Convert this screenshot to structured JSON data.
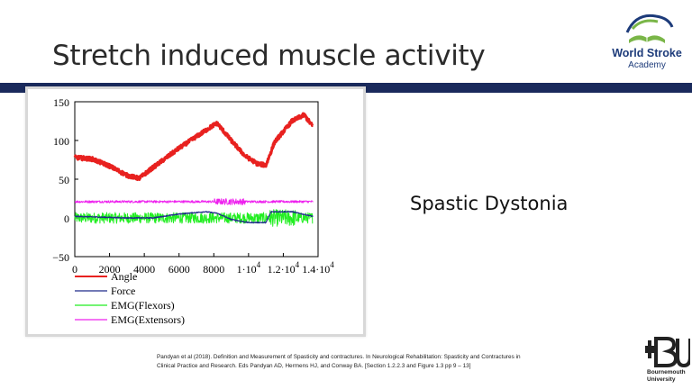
{
  "slide": {
    "title": "Stretch induced muscle activity",
    "annotation": "Spastic Dystonia",
    "citation": "Pandyan et al (2018). Definition and Measurement of Spasticity and contractures. In Neurological Rehabilitation: Spasticity and Contractures in Clinical Practice and Research. Eds Pandyan AD, Hermens HJ, and Conway BA. [Section 1.2.2.3 and Figure 1.3 pp 9 – 13]"
  },
  "logos": {
    "top_line1": "World Stroke",
    "top_line2": "Academy",
    "bottom_line1": "Bournemouth",
    "bottom_line2": "University",
    "brand_color": "#1d3b7a",
    "accent_green": "#7ab648"
  },
  "chart_data": {
    "type": "line",
    "xlim": [
      0,
      14000
    ],
    "ylim": [
      -50,
      150
    ],
    "x_ticks": [
      0,
      2000,
      4000,
      6000,
      8000,
      10000,
      12000,
      14000
    ],
    "x_tick_labels": [
      "0",
      "2000",
      "4000",
      "6000",
      "8000",
      "1·10",
      "1.2·10",
      "1.4·10"
    ],
    "x_tick_exponent": "4",
    "y_ticks": [
      150,
      100,
      50,
      0,
      -50
    ],
    "y_tick_labels": [
      "150",
      "100",
      "50",
      "0",
      "−50"
    ],
    "series": [
      {
        "name": "Angle",
        "color": "#e8211f",
        "noise": 2.5,
        "points": [
          [
            0,
            78
          ],
          [
            1000,
            76
          ],
          [
            2000,
            67
          ],
          [
            3000,
            55
          ],
          [
            3700,
            51
          ],
          [
            4500,
            65
          ],
          [
            6000,
            90
          ],
          [
            7000,
            105
          ],
          [
            8000,
            120
          ],
          [
            8200,
            122
          ],
          [
            9000,
            100
          ],
          [
            9800,
            80
          ],
          [
            10500,
            70
          ],
          [
            11000,
            68
          ],
          [
            11500,
            98
          ],
          [
            12500,
            125
          ],
          [
            13200,
            133
          ],
          [
            13700,
            118
          ]
        ]
      },
      {
        "name": "Force",
        "color": "#1e2a8a",
        "noise": 0.6,
        "points": [
          [
            0,
            2
          ],
          [
            3000,
            0
          ],
          [
            4500,
            0
          ],
          [
            6000,
            5
          ],
          [
            7500,
            8
          ],
          [
            8200,
            6
          ],
          [
            9000,
            -2
          ],
          [
            10000,
            -6
          ],
          [
            11000,
            -6
          ],
          [
            11300,
            8
          ],
          [
            12500,
            8
          ],
          [
            13700,
            2
          ]
        ]
      },
      {
        "name": "EMG(Flexors)",
        "color": "#22ee22",
        "noise": 7,
        "points": [
          [
            0,
            0
          ],
          [
            13700,
            0
          ]
        ]
      },
      {
        "name": "EMG(Extensors)",
        "color": "#ee22ee",
        "noise": 1.5,
        "points": [
          [
            0,
            21
          ],
          [
            13700,
            21
          ]
        ]
      }
    ],
    "legend_position": "bottom-left",
    "grid": false
  }
}
